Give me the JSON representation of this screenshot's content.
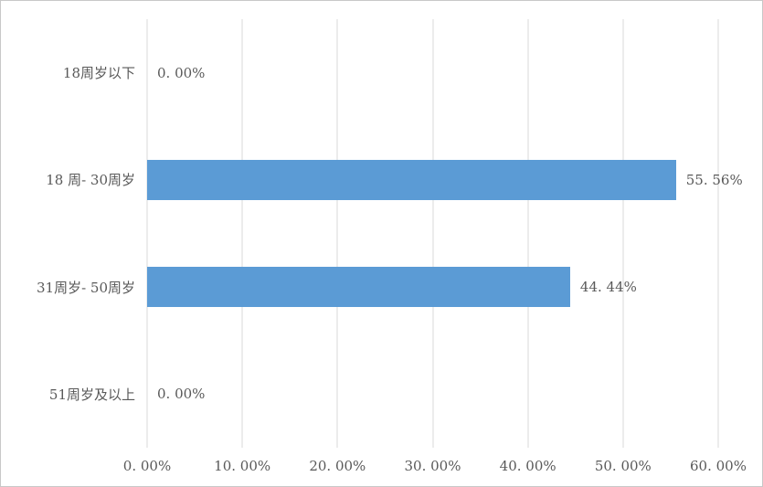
{
  "chart_data": {
    "type": "bar",
    "orientation": "horizontal",
    "title": "",
    "xlabel": "",
    "ylabel": "",
    "categories": [
      "18周岁以下",
      "18 周- 30周岁",
      "31周岁- 50周岁",
      "51周岁及以上"
    ],
    "values": [
      0,
      55.56,
      44.44,
      0
    ],
    "data_labels": [
      "0. 00%",
      "55. 56%",
      "44. 44%",
      "0. 00%"
    ],
    "x_ticks": [
      "0. 00%",
      "10. 00%",
      "20. 00%",
      "30. 00%",
      "40. 00%",
      "50. 00%",
      "60. 00%"
    ],
    "x_tick_values": [
      0,
      10,
      20,
      30,
      40,
      50,
      60
    ],
    "xlim": [
      0,
      60
    ],
    "grid": "vertical-only",
    "legend": "none",
    "colors": {
      "bar": "#5b9bd5",
      "gridline": "#d9d9d9",
      "text": "#595959",
      "frame_border": "#c8c8c8",
      "background": "#ffffff"
    }
  }
}
